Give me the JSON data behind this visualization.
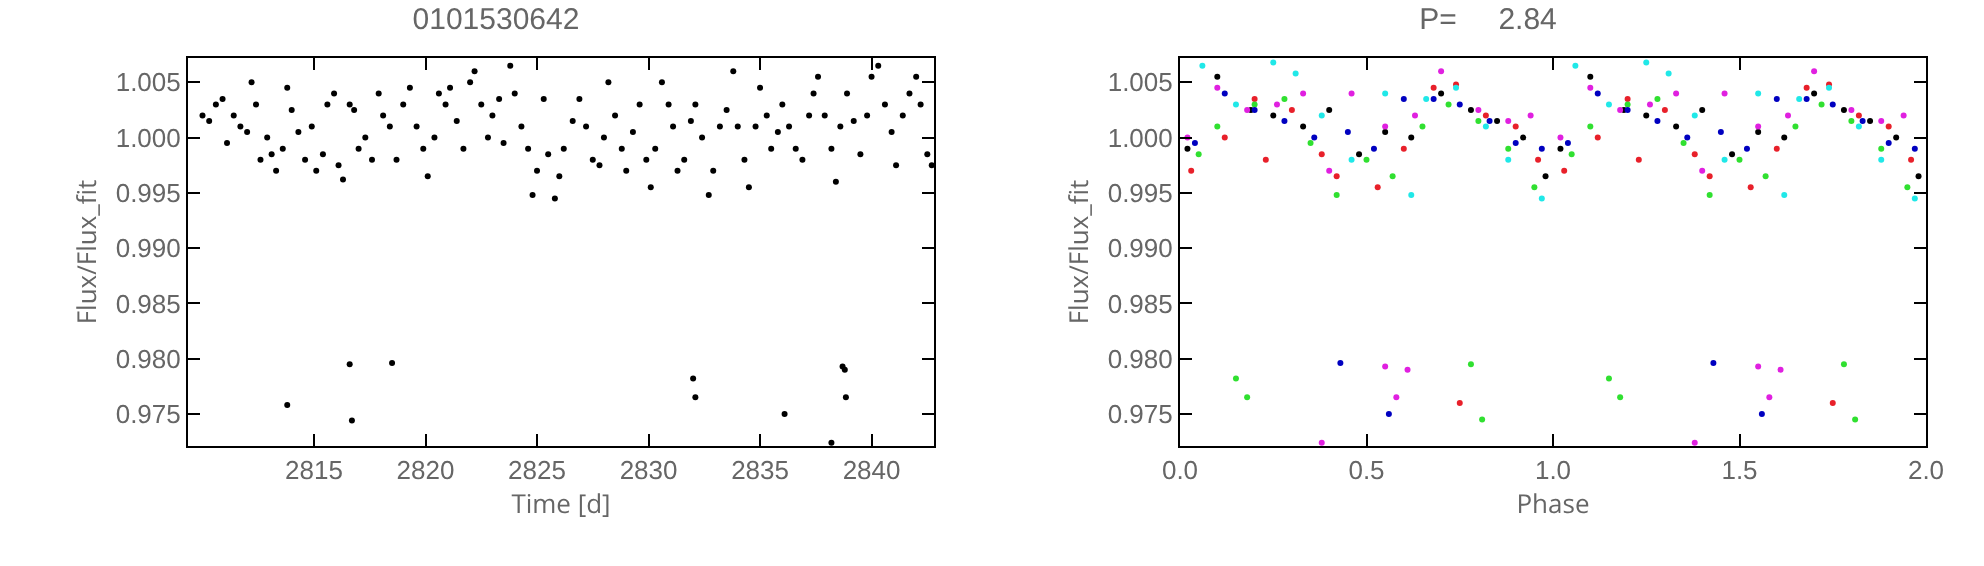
{
  "chart_data": [
    {
      "type": "scatter",
      "title": "0101530642",
      "xlabel": "Time [d]",
      "ylabel": "Flux/Flux_fit",
      "color": "#000000",
      "marker": "circle",
      "grid": false,
      "xlim": [
        2809.35,
        2842.8
      ],
      "xticks": [
        2815,
        2820,
        2825,
        2830,
        2835,
        2840
      ],
      "ylim": [
        0.9721,
        1.0072
      ],
      "yticks": [
        {
          "value": 0.975,
          "label": "0.975"
        },
        {
          "value": 0.98,
          "label": "0.980"
        },
        {
          "value": 0.985,
          "label": "0.985"
        },
        {
          "value": 0.99,
          "label": "0.990"
        },
        {
          "value": 0.995,
          "label": "0.995"
        },
        {
          "value": 1,
          "label": "1.000"
        },
        {
          "value": 1.005,
          "label": "1.005"
        }
      ],
      "x": [
        2810.0,
        2810.3,
        2810.6,
        2810.9,
        2811.1,
        2811.4,
        2811.7,
        2812.0,
        2812.2,
        2812.4,
        2812.6,
        2812.9,
        2813.1,
        2813.3,
        2813.6,
        2813.8,
        2814.0,
        2814.3,
        2814.6,
        2814.9,
        2815.1,
        2815.4,
        2815.6,
        2815.9,
        2816.1,
        2816.3,
        2816.6,
        2816.8,
        2817.0,
        2817.3,
        2817.6,
        2817.9,
        2818.1,
        2818.4,
        2818.7,
        2819.0,
        2819.3,
        2819.6,
        2819.9,
        2820.1,
        2820.4,
        2820.6,
        2820.9,
        2821.1,
        2821.4,
        2821.7,
        2822.0,
        2822.2,
        2822.5,
        2822.8,
        2823.0,
        2823.3,
        2823.5,
        2823.8,
        2824.0,
        2824.3,
        2824.6,
        2824.8,
        2825.0,
        2825.3,
        2825.5,
        2825.8,
        2826.0,
        2826.2,
        2826.6,
        2826.9,
        2827.2,
        2827.5,
        2827.8,
        2828.0,
        2828.2,
        2828.5,
        2828.8,
        2829.0,
        2829.3,
        2829.6,
        2829.9,
        2830.1,
        2830.3,
        2830.6,
        2830.9,
        2831.1,
        2831.3,
        2831.6,
        2831.9,
        2832.1,
        2832.4,
        2832.7,
        2832.9,
        2833.2,
        2833.5,
        2833.8,
        2834.0,
        2834.3,
        2834.5,
        2834.8,
        2835.0,
        2835.3,
        2835.5,
        2835.8,
        2836.0,
        2836.3,
        2836.6,
        2836.9,
        2837.2,
        2837.4,
        2837.6,
        2837.9,
        2838.2,
        2838.4,
        2838.6,
        2838.9,
        2839.2,
        2839.5,
        2839.8,
        2840.0,
        2840.3,
        2840.6,
        2840.9,
        2841.1,
        2841.4,
        2841.7,
        2842.0,
        2842.2,
        2842.5,
        2842.7,
        2813.8,
        2816.6,
        2816.7,
        2818.5,
        2832.0,
        2832.1,
        2836.1,
        2838.7,
        2838.8,
        2838.85,
        2838.2
      ],
      "values": [
        1.002,
        1.0015,
        1.003,
        1.0035,
        0.9995,
        1.002,
        1.001,
        1.0005,
        1.005,
        1.003,
        0.998,
        1.0,
        0.9985,
        0.997,
        0.999,
        1.0045,
        1.0025,
        1.0005,
        0.998,
        1.001,
        0.997,
        0.9985,
        1.003,
        1.004,
        0.9975,
        0.9962,
        1.003,
        1.0025,
        0.999,
        1.0,
        0.998,
        1.004,
        1.002,
        1.001,
        0.998,
        1.003,
        1.0045,
        1.001,
        0.999,
        0.9965,
        1.0,
        1.004,
        1.003,
        1.0045,
        1.0015,
        0.999,
        1.005,
        1.006,
        1.003,
        1.0,
        1.002,
        1.0035,
        0.9995,
        1.0065,
        1.004,
        1.001,
        0.999,
        0.9948,
        0.997,
        1.0035,
        0.9985,
        0.9945,
        0.9965,
        0.999,
        1.0015,
        1.0035,
        1.001,
        0.998,
        0.9975,
        1.0,
        1.005,
        1.002,
        0.999,
        0.997,
        1.0005,
        1.003,
        0.998,
        0.9955,
        0.999,
        1.005,
        1.003,
        1.001,
        0.997,
        0.998,
        1.0015,
        1.003,
        1.0,
        0.9948,
        0.997,
        1.001,
        1.0025,
        1.006,
        1.001,
        0.998,
        0.9955,
        1.001,
        1.0045,
        1.002,
        0.999,
        1.0005,
        1.003,
        1.001,
        0.999,
        0.998,
        1.002,
        1.004,
        1.0055,
        1.002,
        0.999,
        0.996,
        1.001,
        1.004,
        1.0015,
        0.9985,
        1.002,
        1.0055,
        1.0065,
        1.003,
        1.0005,
        0.9975,
        1.002,
        1.004,
        1.0055,
        1.003,
        0.9985,
        0.9975,
        0.9758,
        0.9795,
        0.9744,
        0.9796,
        0.9782,
        0.9765,
        0.975,
        0.9793,
        0.979,
        0.9765,
        0.9724
      ]
    },
    {
      "type": "scatter",
      "title": "P=     2.84",
      "xlabel": "Phase",
      "ylabel": "Flux/Flux_fit",
      "marker": "circle",
      "grid": false,
      "xlim": [
        0,
        2
      ],
      "xticks": [
        {
          "value": 0,
          "label": "0.0"
        },
        {
          "value": 0.5,
          "label": "0.5"
        },
        {
          "value": 1,
          "label": "1.0"
        },
        {
          "value": 1.5,
          "label": "1.5"
        },
        {
          "value": 2,
          "label": "2.0"
        }
      ],
      "ylim": [
        0.9721,
        1.0072
      ],
      "yticks": [
        {
          "value": 0.975,
          "label": "0.975"
        },
        {
          "value": 0.98,
          "label": "0.980"
        },
        {
          "value": 0.985,
          "label": "0.985"
        },
        {
          "value": 0.99,
          "label": "0.990"
        },
        {
          "value": 0.995,
          "label": "0.995"
        },
        {
          "value": 1,
          "label": "1.000"
        },
        {
          "value": 1.005,
          "label": "1.005"
        }
      ],
      "series": [
        {
          "color": "#000000",
          "x": [
            0.02,
            0.1,
            0.19,
            0.25,
            0.33,
            0.4,
            0.48,
            0.55,
            0.62,
            0.7,
            0.78,
            0.85,
            0.92,
            0.98,
            1.02,
            1.1,
            1.19,
            1.25,
            1.33,
            1.4,
            1.48,
            1.55,
            1.62,
            1.7,
            1.78,
            1.85,
            1.92,
            1.98
          ],
          "values": [
            0.999,
            1.0055,
            1.0025,
            1.002,
            1.001,
            1.0025,
            0.9985,
            1.0005,
            1.0,
            1.004,
            1.0025,
            1.0015,
            1.0,
            0.9965,
            0.999,
            1.0055,
            1.0025,
            1.002,
            1.001,
            1.0025,
            0.9985,
            1.0005,
            1.0,
            1.004,
            1.0025,
            1.0015,
            1.0,
            0.9965
          ]
        },
        {
          "color": "#e8202a",
          "x": [
            0.03,
            0.12,
            0.2,
            0.23,
            0.3,
            0.38,
            0.42,
            0.53,
            0.6,
            0.68,
            0.74,
            0.82,
            0.9,
            0.96,
            1.03,
            1.12,
            1.2,
            1.23,
            1.3,
            1.38,
            1.42,
            1.53,
            1.6,
            1.68,
            1.74,
            1.82,
            1.9,
            1.96,
            0.75,
            1.75
          ],
          "values": [
            0.997,
            1.0,
            1.0035,
            0.998,
            1.0025,
            0.9985,
            0.9965,
            0.9955,
            0.999,
            1.0045,
            1.0048,
            1.002,
            1.001,
            0.998,
            0.997,
            1.0,
            1.0035,
            0.998,
            1.0025,
            0.9985,
            0.9965,
            0.9955,
            0.999,
            1.0045,
            1.0048,
            1.002,
            1.001,
            0.998,
            0.976,
            0.976
          ]
        },
        {
          "color": "#30e030",
          "x": [
            0.05,
            0.1,
            0.2,
            0.28,
            0.35,
            0.42,
            0.5,
            0.57,
            0.65,
            0.72,
            0.8,
            0.88,
            0.95,
            1.05,
            1.1,
            1.2,
            1.28,
            1.35,
            1.42,
            1.5,
            1.57,
            1.65,
            1.72,
            1.8,
            1.88,
            1.95,
            0.15,
            0.18,
            0.78,
            0.81,
            1.15,
            1.18,
            1.78,
            1.81
          ],
          "values": [
            0.9985,
            1.001,
            1.003,
            1.0035,
            0.9995,
            0.9948,
            0.998,
            0.9965,
            1.001,
            1.003,
            1.0015,
            0.999,
            0.9955,
            0.9985,
            1.001,
            1.003,
            1.0035,
            0.9995,
            0.9948,
            0.998,
            0.9965,
            1.001,
            1.003,
            1.0015,
            0.999,
            0.9955,
            0.9782,
            0.9765,
            0.9795,
            0.9745,
            0.9782,
            0.9765,
            0.9795,
            0.9745
          ]
        },
        {
          "color": "#0000c0",
          "x": [
            0.04,
            0.12,
            0.2,
            0.28,
            0.36,
            0.45,
            0.52,
            0.6,
            0.68,
            0.75,
            0.83,
            0.9,
            0.97,
            1.04,
            1.12,
            1.2,
            1.28,
            1.36,
            1.45,
            1.52,
            1.6,
            1.68,
            1.75,
            1.83,
            1.9,
            1.97,
            0.43,
            0.56,
            1.43,
            1.56
          ],
          "values": [
            0.9995,
            1.004,
            1.0025,
            1.0015,
            1.0,
            1.0005,
            0.999,
            1.0035,
            1.0035,
            1.003,
            1.0015,
            0.9995,
            0.999,
            0.9995,
            1.004,
            1.0025,
            1.0015,
            1.0,
            1.0005,
            0.999,
            1.0035,
            1.0035,
            1.003,
            1.0015,
            0.9995,
            0.999,
            0.9796,
            0.975,
            0.9796,
            0.975
          ]
        },
        {
          "color": "#20e8e8",
          "x": [
            0.06,
            0.15,
            0.25,
            0.31,
            0.38,
            0.46,
            0.55,
            0.62,
            0.66,
            0.74,
            0.82,
            0.88,
            0.97,
            1.06,
            1.15,
            1.25,
            1.31,
            1.38,
            1.46,
            1.55,
            1.62,
            1.66,
            1.74,
            1.82,
            1.88,
            1.97
          ],
          "values": [
            1.0065,
            1.003,
            1.0068,
            1.0058,
            1.002,
            0.998,
            1.004,
            0.9948,
            1.0035,
            1.0045,
            1.001,
            0.998,
            0.9945,
            1.0065,
            1.003,
            1.0068,
            1.0058,
            1.002,
            0.998,
            1.004,
            0.9948,
            1.0035,
            1.0045,
            1.001,
            0.998,
            0.9945
          ]
        },
        {
          "color": "#e020e0",
          "x": [
            0.02,
            0.1,
            0.18,
            0.26,
            0.33,
            0.4,
            0.46,
            0.55,
            0.63,
            0.7,
            0.8,
            0.88,
            0.94,
            1.02,
            1.1,
            1.18,
            1.26,
            1.33,
            1.4,
            1.46,
            1.55,
            1.63,
            1.7,
            1.8,
            1.88,
            1.94,
            0.55,
            0.58,
            0.61,
            0.38,
            1.55,
            1.58,
            1.61,
            1.38
          ],
          "values": [
            1.0,
            1.0045,
            1.0025,
            1.003,
            1.004,
            0.997,
            1.004,
            1.001,
            1.002,
            1.006,
            1.0025,
            1.0015,
            1.002,
            1.0,
            1.0045,
            1.0025,
            1.003,
            1.004,
            0.997,
            1.004,
            1.001,
            1.002,
            1.006,
            1.0025,
            1.0015,
            1.002,
            0.9793,
            0.9765,
            0.979,
            0.9724,
            0.9793,
            0.9765,
            0.979,
            0.9724
          ]
        }
      ]
    }
  ]
}
